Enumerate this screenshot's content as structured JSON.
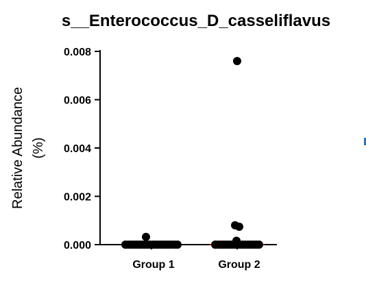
{
  "chart_data": {
    "type": "scatter",
    "title": "s__Enterococcus_D_casseliflavus",
    "xlabel": "",
    "ylabel": "Relative Abundance",
    "ylabel_unit": "(%)",
    "categories": [
      "Group 1",
      "Group 2"
    ],
    "ylim": [
      0,
      0.008
    ],
    "yticks": [
      0.0,
      0.002,
      0.004,
      0.006,
      0.008
    ],
    "ytick_labels": [
      "0.000",
      "0.002",
      "0.004",
      "0.006",
      "0.008"
    ],
    "grid": false,
    "legend": "none",
    "point_color": "#000000",
    "median_color": "#b00000",
    "series": [
      {
        "category": "Group 1",
        "values": [
          0.00032,
          0,
          0,
          0,
          0,
          0,
          0,
          0,
          0,
          0,
          0,
          0,
          0,
          0,
          0,
          0,
          0,
          0,
          0,
          0,
          0
        ],
        "median": 0
      },
      {
        "category": "Group 2",
        "values": [
          0.0076,
          0.0008,
          0.00074,
          0.00016,
          0,
          0,
          0,
          0,
          0,
          0,
          0,
          0,
          0,
          0,
          0,
          0,
          0,
          0,
          0,
          0,
          0
        ],
        "median": 0
      }
    ]
  }
}
